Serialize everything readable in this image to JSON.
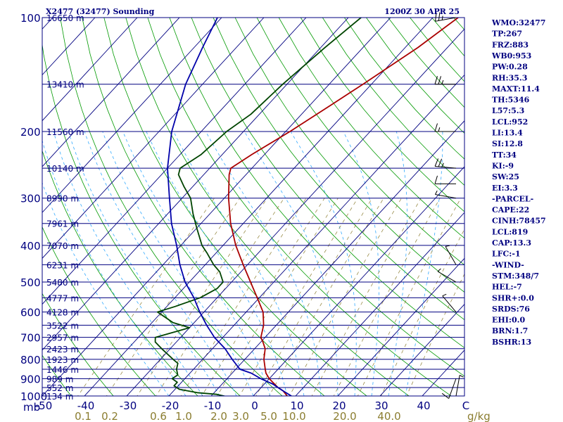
{
  "title_left": "X2477 (32477) Sounding",
  "title_right": "1200Z 30 APR 25",
  "units": {
    "pressure": "mb",
    "mixing_ratio": "g/kg"
  },
  "colors": {
    "frame": "#000080",
    "isobar": "#000080",
    "dry_adiabat": "#009900",
    "moist_adiabat": "#33aaff",
    "mixing_ratio": "#8b7d30",
    "temperature": "#aa0000",
    "dewpoint": "#004400",
    "parcel": "#0000aa",
    "index_text": "#000080"
  },
  "chart_data": {
    "type": "line",
    "chart_kind": "skew-T log-P sounding",
    "y_axis": {
      "quantity": "pressure (mb)",
      "scale": "log",
      "range": [
        1000,
        100
      ],
      "tick_labels": [
        "100",
        "200",
        "300",
        "400",
        "500",
        "600",
        "700",
        "800",
        "900",
        "1000"
      ]
    },
    "x_axis": {
      "quantity": "temperature",
      "range": [
        -50,
        50
      ],
      "tick_labels": [
        "-50",
        "-40",
        "-30",
        "-20",
        "-10",
        "0",
        "10",
        "20",
        "30",
        "40",
        "C"
      ]
    },
    "height_labels": [
      {
        "p": 100,
        "label": "16650 m"
      },
      {
        "p": 150,
        "label": "13410 m"
      },
      {
        "p": 200,
        "label": "11560 m"
      },
      {
        "p": 250,
        "label": "10140 m"
      },
      {
        "p": 300,
        "label": "8990 m"
      },
      {
        "p": 350,
        "label": "7961 m"
      },
      {
        "p": 400,
        "label": "7070 m"
      },
      {
        "p": 450,
        "label": "6231 m"
      },
      {
        "p": 500,
        "label": "5480 m"
      },
      {
        "p": 550,
        "label": "4777 m"
      },
      {
        "p": 600,
        "label": "4128 m"
      },
      {
        "p": 650,
        "label": "3522 m"
      },
      {
        "p": 700,
        "label": "2957 m"
      },
      {
        "p": 750,
        "label": "2423 m"
      },
      {
        "p": 800,
        "label": "1923 m"
      },
      {
        "p": 850,
        "label": "1446 m"
      },
      {
        "p": 900,
        "label": "989 m"
      },
      {
        "p": 950,
        "label": "552 m"
      },
      {
        "p": 1000,
        "label": "134 m"
      }
    ],
    "mixing_ratio_labels": [
      {
        "value": 0.1,
        "label": "0.1"
      },
      {
        "value": 0.2,
        "label": "0.2"
      },
      {
        "value": 0.6,
        "label": "0.6"
      },
      {
        "value": 1.0,
        "label": "1.0"
      },
      {
        "value": 2.0,
        "label": "2.0"
      },
      {
        "value": 3.0,
        "label": "3.0"
      },
      {
        "value": 5.0,
        "label": "5.0"
      },
      {
        "value": 10.0,
        "label": "10.0"
      },
      {
        "value": 20.0,
        "label": "20.0"
      },
      {
        "value": 40.0,
        "label": "40.0"
      }
    ],
    "series": [
      {
        "name": "temperature",
        "style": "dark red",
        "points": [
          [
            1005,
            9
          ],
          [
            1000,
            8
          ],
          [
            970,
            6
          ],
          [
            950,
            4
          ],
          [
            925,
            2
          ],
          [
            900,
            0
          ],
          [
            870,
            -2
          ],
          [
            850,
            -3
          ],
          [
            800,
            -5.5
          ],
          [
            750,
            -7.5
          ],
          [
            720,
            -9.5
          ],
          [
            700,
            -11
          ],
          [
            650,
            -13
          ],
          [
            600,
            -16
          ],
          [
            550,
            -20.5
          ],
          [
            500,
            -25.5
          ],
          [
            450,
            -31
          ],
          [
            400,
            -37
          ],
          [
            350,
            -43
          ],
          [
            300,
            -49
          ],
          [
            260,
            -54
          ],
          [
            250,
            -55
          ],
          [
            230,
            -53
          ],
          [
            200,
            -49
          ],
          [
            170,
            -45
          ],
          [
            150,
            -42
          ],
          [
            120,
            -37
          ],
          [
            100,
            -34
          ]
        ]
      },
      {
        "name": "dewpoint",
        "style": "dark green",
        "points": [
          [
            1005,
            -6
          ],
          [
            1000,
            -7
          ],
          [
            990,
            -9
          ],
          [
            980,
            -14
          ],
          [
            960,
            -19
          ],
          [
            940,
            -21
          ],
          [
            920,
            -21
          ],
          [
            900,
            -23
          ],
          [
            880,
            -22.5
          ],
          [
            850,
            -24
          ],
          [
            820,
            -25
          ],
          [
            800,
            -27
          ],
          [
            750,
            -32
          ],
          [
            720,
            -35
          ],
          [
            700,
            -36
          ],
          [
            680,
            -33
          ],
          [
            660,
            -30
          ],
          [
            640,
            -35
          ],
          [
            600,
            -41
          ],
          [
            580,
            -38
          ],
          [
            550,
            -34
          ],
          [
            520,
            -32
          ],
          [
            500,
            -32
          ],
          [
            470,
            -35
          ],
          [
            450,
            -38
          ],
          [
            420,
            -42
          ],
          [
            400,
            -45
          ],
          [
            360,
            -50
          ],
          [
            330,
            -54
          ],
          [
            300,
            -58
          ],
          [
            280,
            -62
          ],
          [
            260,
            -66
          ],
          [
            250,
            -67
          ],
          [
            230,
            -65
          ],
          [
            200,
            -64
          ],
          [
            180,
            -62
          ],
          [
            150,
            -61
          ],
          [
            120,
            -59
          ],
          [
            100,
            -57
          ]
        ]
      },
      {
        "name": "parcel",
        "style": "blue",
        "points": [
          [
            1000,
            9
          ],
          [
            970,
            6
          ],
          [
            950,
            4
          ],
          [
            930,
            2
          ],
          [
            900,
            -2
          ],
          [
            870,
            -5.5
          ],
          [
            850,
            -9
          ],
          [
            800,
            -13
          ],
          [
            750,
            -17
          ],
          [
            700,
            -22
          ],
          [
            650,
            -26.5
          ],
          [
            600,
            -31
          ],
          [
            550,
            -35.5
          ],
          [
            500,
            -41
          ],
          [
            450,
            -46
          ],
          [
            400,
            -51
          ],
          [
            350,
            -57
          ],
          [
            300,
            -63
          ],
          [
            250,
            -70
          ],
          [
            200,
            -77
          ],
          [
            150,
            -84
          ],
          [
            120,
            -88
          ],
          [
            100,
            -91
          ]
        ]
      }
    ],
    "wind_barbs": [
      {
        "p": 100,
        "dir": 260,
        "kt": 25
      },
      {
        "p": 150,
        "dir": 270,
        "kt": 25
      },
      {
        "p": 200,
        "dir": 270,
        "kt": 15
      },
      {
        "p": 250,
        "dir": 275,
        "kt": 25
      },
      {
        "p": 275,
        "dir": 270,
        "kt": 10
      },
      {
        "p": 300,
        "dir": 280,
        "kt": 5
      },
      {
        "p": 450,
        "dir": 330,
        "kt": 5
      },
      {
        "p": 500,
        "dir": 300,
        "kt": 3
      },
      {
        "p": 600,
        "dir": 320,
        "kt": 3
      },
      {
        "p": 900,
        "dir": 200,
        "kt": 10
      },
      {
        "p": 1000,
        "dir": 10,
        "kt": 5
      }
    ]
  },
  "indices": [
    "WMO:32477",
    "TP:267",
    "FRZ:883",
    "WB0:953",
    "PW:0.28",
    "RH:35.3",
    "MAXT:11.4",
    "TH:5346",
    "L57:5.3",
    "LCL:952",
    "LI:13.4",
    "SI:12.8",
    "TT:34",
    "KI:-9",
    "SW:25",
    "EI:3.3",
    "-PARCEL-",
    "CAPE:22",
    "CINH:78457",
    "LCL:819",
    "CAP:13.3",
    "LFC:-1",
    "-WIND-",
    "STM:348/7",
    "HEL:-7",
    "SHR+:0.0",
    "SRDS:76",
    "EHI:0.0",
    "BRN:1.7",
    "BSHR:13"
  ]
}
